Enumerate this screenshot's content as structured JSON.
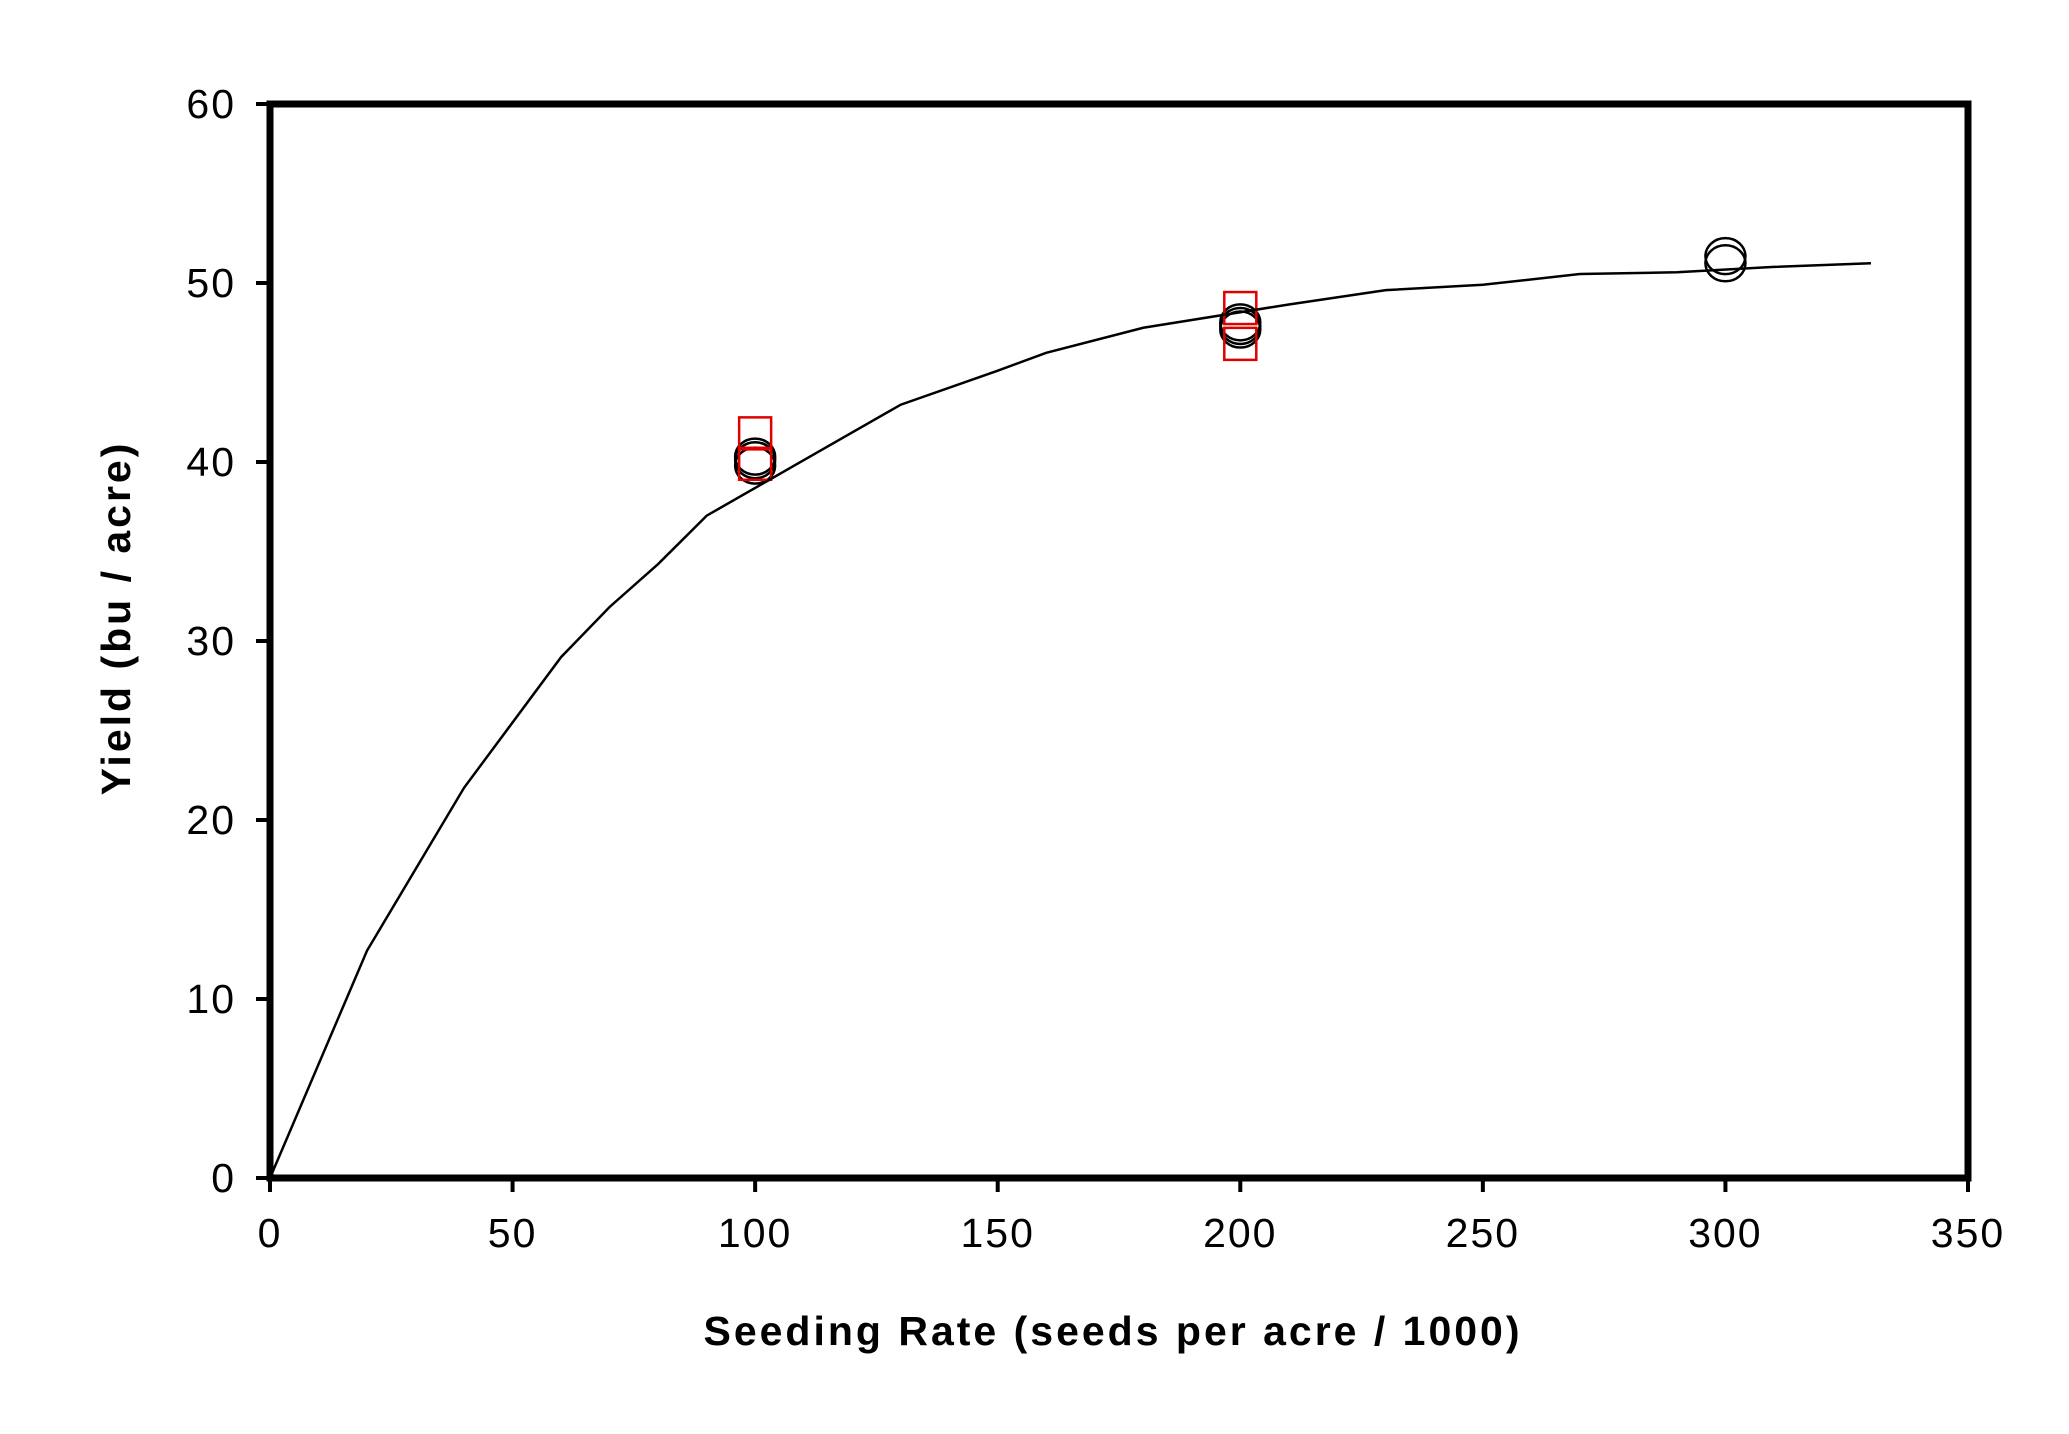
{
  "chart_data": {
    "type": "scatter",
    "title": "",
    "xlabel": "Seeding Rate (seeds per acre / 1000)",
    "ylabel": "Yield (bu / acre)",
    "xlim": [
      0,
      350
    ],
    "ylim": [
      0,
      60
    ],
    "x_ticks": [
      "0",
      "50",
      "100",
      "150",
      "200",
      "250",
      "300",
      "350"
    ],
    "y_ticks": [
      "0",
      "10",
      "20",
      "30",
      "40",
      "50",
      "60"
    ],
    "x_tick_values": [
      0,
      50,
      100,
      150,
      200,
      250,
      300,
      350
    ],
    "y_tick_values": [
      0,
      10,
      20,
      30,
      40,
      50,
      60
    ],
    "grid": false,
    "legend": "none",
    "series": [
      {
        "marker": "circle",
        "color": "#000000",
        "x": [
          100,
          100,
          100,
          200,
          200,
          200,
          300,
          300
        ],
        "y": [
          40.3,
          39.8,
          40.1,
          47.8,
          47.4,
          47.6,
          51.5,
          51.1
        ]
      },
      {
        "marker": "square",
        "color": "#e00000",
        "x": [
          100,
          100,
          200,
          200
        ],
        "y": [
          41.6,
          39.9,
          48.6,
          46.6
        ]
      },
      {
        "marker": "line",
        "color": "#000000",
        "x": [
          0,
          20,
          40,
          60,
          70,
          80,
          90,
          110,
          130,
          150,
          160,
          180,
          210,
          230,
          250,
          270,
          290,
          310,
          330
        ],
        "y": [
          0,
          12.7,
          21.8,
          29.1,
          31.9,
          34.3,
          37.0,
          40.1,
          43.2,
          45.1,
          46.1,
          47.5,
          48.8,
          49.6,
          49.9,
          50.5,
          50.6,
          50.9,
          51.1
        ]
      }
    ]
  }
}
